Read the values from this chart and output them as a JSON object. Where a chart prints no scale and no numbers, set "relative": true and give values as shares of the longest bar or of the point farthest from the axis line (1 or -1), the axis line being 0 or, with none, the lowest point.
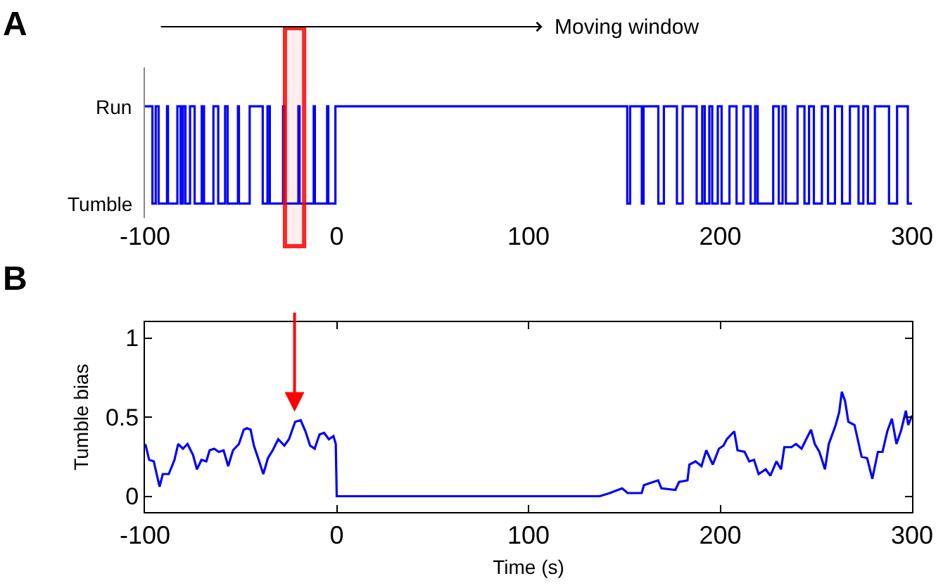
{
  "chart_data": [
    {
      "type": "step",
      "title": "A",
      "relative": true,
      "annotations": [
        "Moving window",
        "Run",
        "Tumble"
      ],
      "x": [
        -100,
        -96.1,
        -94.4,
        -92.9,
        -88.5,
        -88.0,
        -83.1,
        -81.4,
        -80.2,
        -78.9,
        -76.5,
        -74.1,
        -70.4,
        -69.2,
        -64.3,
        -61.8,
        -58.2,
        -56.9,
        -51.5,
        -51.0,
        -45.4,
        -38.6,
        -36.1,
        -34.9,
        -28.0,
        -27.3,
        -20.0,
        -19.4,
        -12.0,
        -11.4,
        -5.0,
        -4.4,
        -0.7,
        151.5,
        153.0,
        159.1,
        160.0,
        167.7,
        170.6,
        177.4,
        180.4,
        187.7,
        190.6,
        191.9,
        194.3,
        195.8,
        198.7,
        200.7,
        204.8,
        208.5,
        212.1,
        215.8,
        218.2,
        219.5,
        227.6,
        230.5,
        232.5,
        234.2,
        240.3,
        243.9,
        246.3,
        248.8,
        253.0,
        256.2,
        259.8,
        263.5,
        267.6,
        272.1,
        274.6,
        277.0,
        280.6,
        288.0,
        292.2,
        297.8,
        300
      ],
      "series": [
        {
          "color": "#0000ff",
          "values": [
            1,
            0,
            1,
            0,
            1,
            0,
            1,
            0,
            1,
            0,
            1,
            0,
            1,
            0,
            1,
            0,
            1,
            0,
            1,
            0,
            1,
            0,
            1,
            0,
            1,
            0,
            1,
            0,
            1,
            0,
            1,
            0,
            1,
            0,
            1,
            0,
            1,
            0,
            1,
            0,
            1,
            0,
            1,
            0,
            1,
            0,
            1,
            0,
            1,
            0,
            1,
            0,
            1,
            0,
            1,
            0,
            1,
            0,
            1,
            0,
            1,
            0,
            1,
            0,
            1,
            0,
            1,
            0,
            1,
            0,
            1,
            0,
            1,
            0,
            0
          ]
        }
      ],
      "xlim": [
        -100,
        300
      ],
      "xticks": [
        -100,
        0,
        100,
        200,
        300
      ],
      "bands": [
        {
          "axis": "x",
          "from": -27,
          "to": -17,
          "color": "#ff0000"
        }
      ]
    },
    {
      "type": "line",
      "title": "B",
      "xlabel": "Time (s)",
      "ylabel": "Tumble bias",
      "x": [
        -99.8,
        -97.8,
        -95.4,
        -93.9,
        -92.4,
        -90.7,
        -87.6,
        -84.6,
        -82.7,
        -80.2,
        -77.8,
        -74.9,
        -72.9,
        -70.5,
        -68.0,
        -66.3,
        -63.9,
        -61.5,
        -59.0,
        -56.6,
        -54.1,
        -51.0,
        -48.5,
        -46.8,
        -44.9,
        -43.2,
        -40.7,
        -38.3,
        -35.9,
        -33.4,
        -30.5,
        -27.3,
        -24.9,
        -21.7,
        -18.8,
        -16.3,
        -13.9,
        -11.5,
        -9.0,
        -6.6,
        -4.1,
        -1.7,
        -0.5,
        0,
        137.1,
        142.4,
        148.8,
        151.7,
        159.0,
        160.2,
        167.6,
        169.3,
        176.6,
        178.5,
        182.9,
        183.9,
        187.1,
        190.2,
        192.7,
        196.1,
        199.3,
        201.7,
        203.4,
        207.3,
        209.0,
        212.7,
        215.1,
        217.6,
        220.0,
        223.7,
        226.1,
        229.3,
        231.7,
        233.4,
        237.1,
        239.5,
        242.4,
        244.4,
        247.3,
        249.3,
        251.7,
        254.6,
        256.6,
        260.2,
        262.0,
        263.4,
        265.1,
        266.8,
        270.0,
        273.7,
        276.6,
        279.3,
        282.2,
        284.6,
        287.1,
        289.5,
        291.9,
        294.4,
        296.8,
        298.0,
        300
      ],
      "series": [
        {
          "color": "#0000ff",
          "values": [
            0.33,
            0.23,
            0.22,
            0.14,
            0.06,
            0.14,
            0.14,
            0.23,
            0.33,
            0.3,
            0.33,
            0.26,
            0.17,
            0.23,
            0.22,
            0.29,
            0.3,
            0.28,
            0.29,
            0.19,
            0.29,
            0.33,
            0.42,
            0.43,
            0.42,
            0.32,
            0.23,
            0.14,
            0.24,
            0.29,
            0.36,
            0.32,
            0.36,
            0.47,
            0.48,
            0.41,
            0.32,
            0.3,
            0.39,
            0.4,
            0.36,
            0.38,
            0.33,
            0,
            0,
            0.02,
            0.05,
            0.02,
            0.02,
            0.07,
            0.1,
            0.05,
            0.04,
            0.09,
            0.1,
            0.2,
            0.22,
            0.19,
            0.29,
            0.2,
            0.3,
            0.32,
            0.36,
            0.41,
            0.29,
            0.28,
            0.22,
            0.23,
            0.14,
            0.17,
            0.13,
            0.22,
            0.17,
            0.31,
            0.31,
            0.33,
            0.3,
            0.35,
            0.42,
            0.33,
            0.28,
            0.17,
            0.33,
            0.45,
            0.53,
            0.66,
            0.6,
            0.47,
            0.45,
            0.25,
            0.24,
            0.11,
            0.28,
            0.28,
            0.41,
            0.49,
            0.33,
            0.42,
            0.54,
            0.45,
            0.51
          ]
        }
      ],
      "xlim": [
        -100,
        300
      ],
      "xticks": [
        -100,
        0,
        100,
        200,
        300
      ],
      "ylim": [
        -0.1,
        1.1
      ],
      "yticks": [
        0,
        0.5,
        1
      ]
    }
  ]
}
